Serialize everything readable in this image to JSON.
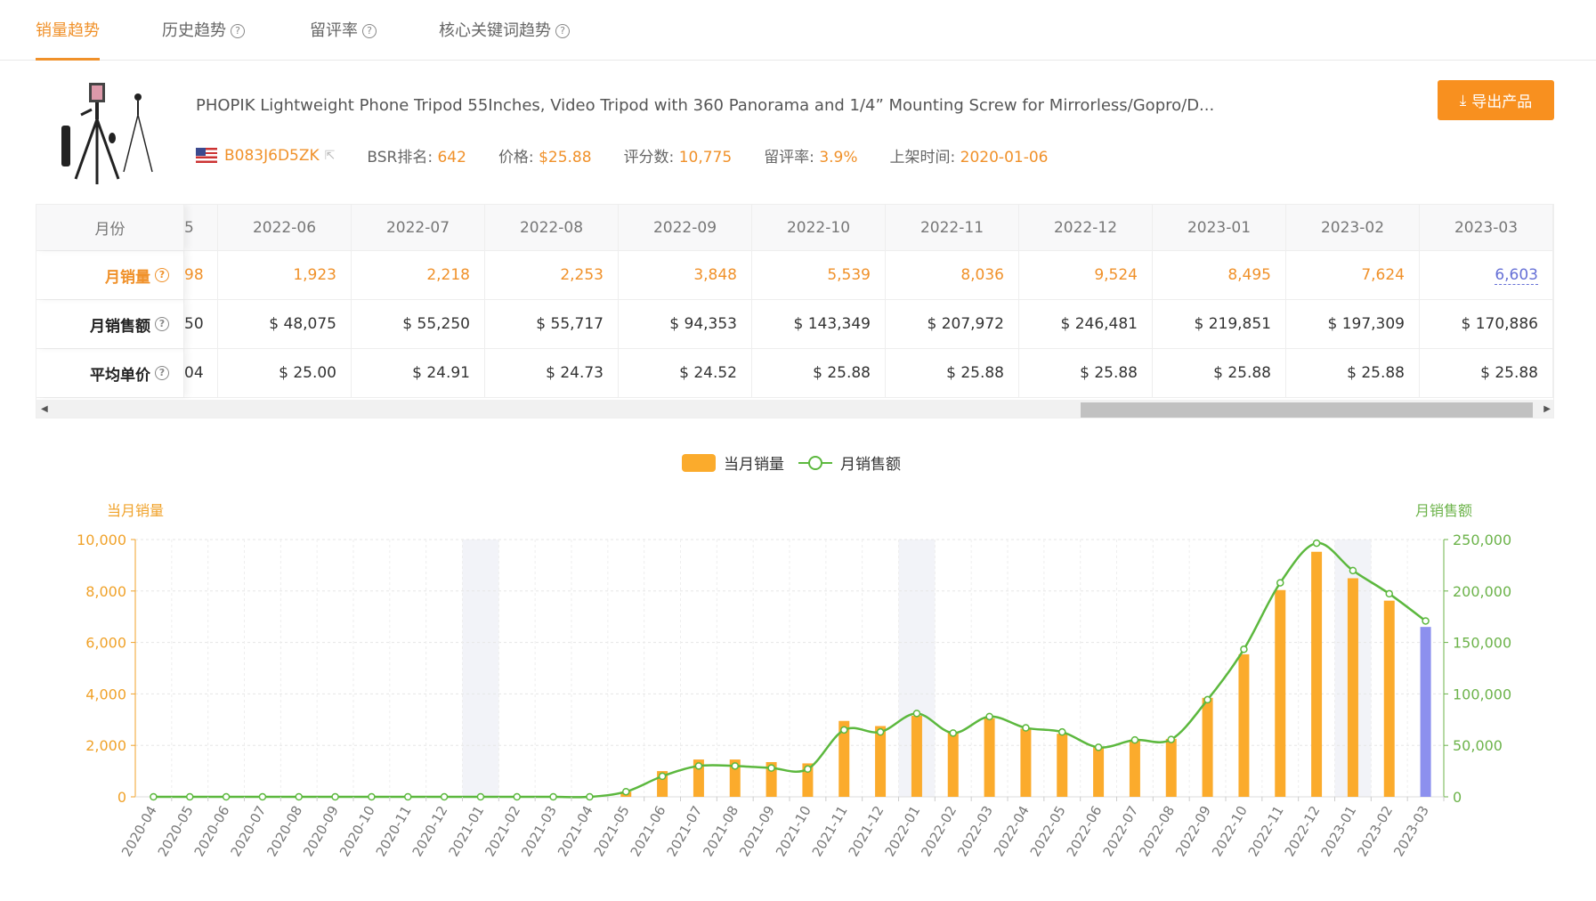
{
  "tabs": [
    {
      "label": "销量趋势",
      "help": false
    },
    {
      "label": "历史趋势",
      "help": true
    },
    {
      "label": "留评率",
      "help": true
    },
    {
      "label": "核心关键词趋势",
      "help": true
    }
  ],
  "help_glyph": "?",
  "product": {
    "title": "PHOPIK Lightweight Phone Tripod 55Inches, Video Tripod with 360 Panorama and 1/4” Mounting Screw for Mirrorless/Gopro/D...",
    "asin": "B083J6D5ZK",
    "bsr_label": "BSR排名:",
    "bsr": "642",
    "price_label": "价格:",
    "price": "$25.88",
    "reviews_label": "评分数:",
    "reviews": "10,775",
    "review_rate_label": "留评率:",
    "review_rate": "3.9%",
    "listed_label": "上架时间:",
    "listed": "2020-01-06"
  },
  "export_label": "导出产品",
  "table": {
    "row_headers": [
      "月份",
      "月销量",
      "月销售额",
      "平均单价"
    ],
    "partial": [
      "5",
      "98",
      "50",
      "04"
    ],
    "months": [
      "2022-06",
      "2022-07",
      "2022-08",
      "2022-09",
      "2022-10",
      "2022-11",
      "2022-12",
      "2023-01",
      "2023-02",
      "2023-03"
    ],
    "sales": [
      "1,923",
      "2,218",
      "2,253",
      "3,848",
      "5,539",
      "8,036",
      "9,524",
      "8,495",
      "7,624",
      "6,603"
    ],
    "revenue": [
      "$ 48,075",
      "$ 55,250",
      "$ 55,717",
      "$ 94,353",
      "$ 143,349",
      "$ 207,972",
      "$ 246,481",
      "$ 219,851",
      "$ 197,309",
      "$ 170,886"
    ],
    "avg_price": [
      "$ 25.00",
      "$ 24.91",
      "$ 24.73",
      "$ 24.52",
      "$ 25.88",
      "$ 25.88",
      "$ 25.88",
      "$ 25.88",
      "$ 25.88",
      "$ 25.88"
    ]
  },
  "chart_data": {
    "type": "bar+line",
    "legend": [
      "当月销量",
      "月销售额"
    ],
    "legend_placement": "top-center",
    "ylabel_left": "当月销量",
    "ylabel_right": "月销售额",
    "ylim_left": [
      0,
      10000
    ],
    "ylim_right": [
      0,
      250000
    ],
    "yticks_left": [
      "0",
      "2,000",
      "4,000",
      "6,000",
      "8,000",
      "10,000"
    ],
    "yticks_right": [
      "0",
      "50,000",
      "100,000",
      "150,000",
      "200,000",
      "250,000"
    ],
    "categories": [
      "2020-04",
      "2020-05",
      "2020-06",
      "2020-07",
      "2020-08",
      "2020-09",
      "2020-10",
      "2020-11",
      "2020-12",
      "2021-01",
      "2021-02",
      "2021-03",
      "2021-04",
      "2021-05",
      "2021-06",
      "2021-07",
      "2021-08",
      "2021-09",
      "2021-10",
      "2021-11",
      "2021-12",
      "2022-01",
      "2022-02",
      "2022-03",
      "2022-04",
      "2022-05",
      "2022-06",
      "2022-07",
      "2022-08",
      "2022-09",
      "2022-10",
      "2022-11",
      "2022-12",
      "2023-01",
      "2023-02",
      "2023-03"
    ],
    "series": [
      {
        "name": "当月销量",
        "type": "bar",
        "values": [
          0,
          0,
          0,
          0,
          0,
          0,
          0,
          0,
          0,
          0,
          0,
          0,
          0,
          200,
          1000,
          1450,
          1450,
          1350,
          1300,
          2950,
          2750,
          3150,
          2500,
          3050,
          2650,
          2450,
          1923,
          2218,
          2253,
          3848,
          5539,
          8036,
          9524,
          8495,
          7624,
          6603
        ]
      },
      {
        "name": "月销售额",
        "type": "line",
        "values": [
          0,
          0,
          0,
          0,
          0,
          0,
          0,
          0,
          0,
          0,
          0,
          0,
          0,
          5000,
          20000,
          30000,
          30000,
          28000,
          27000,
          65000,
          63000,
          81000,
          62000,
          78000,
          67000,
          63000,
          48075,
          55250,
          55717,
          94353,
          143349,
          207972,
          246481,
          219851,
          197309,
          170886
        ]
      }
    ],
    "highlight_categories": [
      "2021-01",
      "2022-01",
      "2023-01"
    ],
    "colors": {
      "bar": "#fbab2c",
      "bar_current": "#8c90ee",
      "line": "#5cb83e",
      "left_axis": "#f0a22a",
      "right_axis": "#6cb34a",
      "band": "#f2f3f8"
    }
  }
}
